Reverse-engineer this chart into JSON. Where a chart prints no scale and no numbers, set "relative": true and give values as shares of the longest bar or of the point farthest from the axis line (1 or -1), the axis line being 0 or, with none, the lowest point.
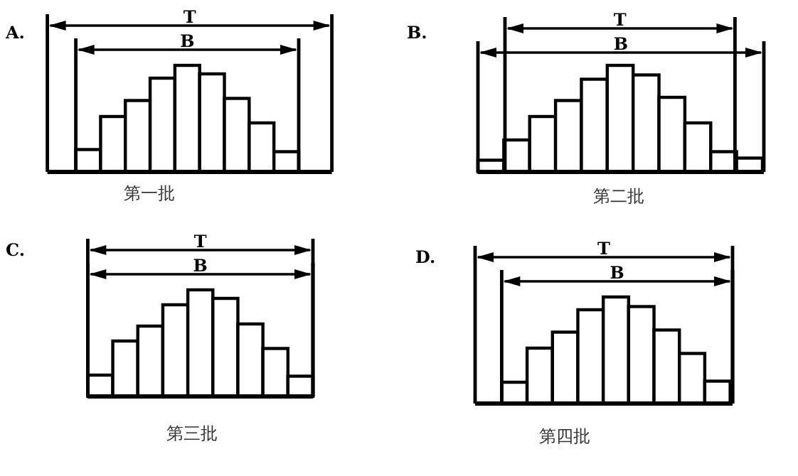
{
  "chart_data": [
    {
      "type": "bar",
      "title": "A.",
      "xlabel": "第一批",
      "relative": true,
      "color": "#ffffff",
      "categories": [
        null,
        null,
        null,
        null,
        null,
        null,
        null,
        null,
        null
      ],
      "values": [
        0.21,
        0.52,
        0.67,
        0.88,
        1,
        0.92,
        0.69,
        0.46,
        0.19
      ],
      "annotations": [
        "T",
        "B"
      ]
    },
    {
      "type": "bar",
      "title": "B.",
      "xlabel": "第二批",
      "relative": true,
      "color": "#ffffff",
      "categories": [
        null,
        null,
        null,
        null,
        null,
        null,
        null,
        null,
        null,
        null,
        null
      ],
      "values": [
        0.11,
        0.3,
        0.52,
        0.67,
        0.87,
        1,
        0.91,
        0.7,
        0.46,
        0.19,
        0.13
      ],
      "annotations": [
        "T",
        "B"
      ]
    },
    {
      "type": "bar",
      "title": "C.",
      "xlabel": "第三批",
      "relative": true,
      "color": "#ffffff",
      "categories": [
        null,
        null,
        null,
        null,
        null,
        null,
        null,
        null,
        null
      ],
      "values": [
        0.2,
        0.52,
        0.66,
        0.86,
        1,
        0.92,
        0.68,
        0.45,
        0.19
      ],
      "annotations": [
        "T",
        "B"
      ]
    },
    {
      "type": "bar",
      "title": "D.",
      "xlabel": "第四批",
      "relative": true,
      "color": "#ffffff",
      "categories": [
        null,
        null,
        null,
        null,
        null,
        null,
        null,
        null,
        null
      ],
      "values": [
        0.2,
        0.52,
        0.67,
        0.88,
        1,
        0.91,
        0.69,
        0.47,
        0.21
      ],
      "annotations": [
        "T",
        "B"
      ]
    }
  ]
}
